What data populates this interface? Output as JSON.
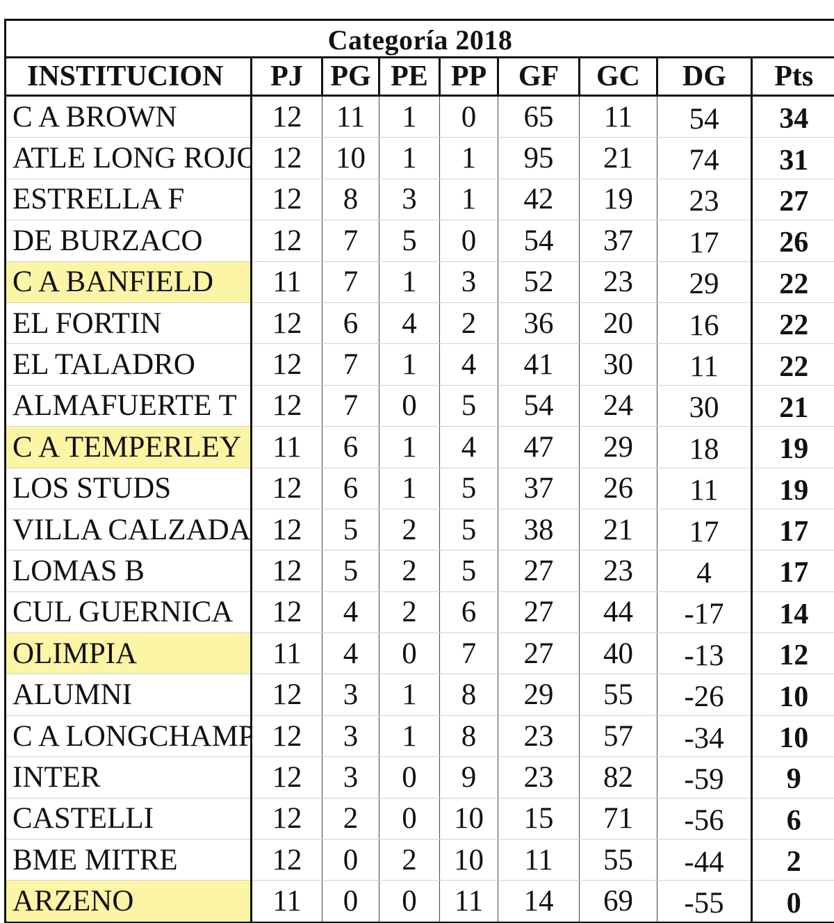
{
  "title": "Categoría  2018",
  "headers": [
    "INSTITUCION",
    "PJ",
    "PG",
    "PE",
    "PP",
    "GF",
    "GC",
    "DG",
    "Pts"
  ],
  "highlight_color": "#fdf5a6",
  "rows": [
    {
      "team": "C A BROWN",
      "pj": "12",
      "pg": "11",
      "pe": "1",
      "pp": "0",
      "gf": "65",
      "gc": "11",
      "dg": "54",
      "pts": "34",
      "highlighted": false
    },
    {
      "team": "ATLE LONG ROJO",
      "pj": "12",
      "pg": "10",
      "pe": "1",
      "pp": "1",
      "gf": "95",
      "gc": "21",
      "dg": "74",
      "pts": "31",
      "highlighted": false
    },
    {
      "team": "ESTRELLA F",
      "pj": "12",
      "pg": "8",
      "pe": "3",
      "pp": "1",
      "gf": "42",
      "gc": "19",
      "dg": "23",
      "pts": "27",
      "highlighted": false
    },
    {
      "team": "DE BURZACO",
      "pj": "12",
      "pg": "7",
      "pe": "5",
      "pp": "0",
      "gf": "54",
      "gc": "37",
      "dg": "17",
      "pts": "26",
      "highlighted": false
    },
    {
      "team": "C A BANFIELD",
      "pj": "11",
      "pg": "7",
      "pe": "1",
      "pp": "3",
      "gf": "52",
      "gc": "23",
      "dg": "29",
      "pts": "22",
      "highlighted": true
    },
    {
      "team": "EL FORTIN",
      "pj": "12",
      "pg": "6",
      "pe": "4",
      "pp": "2",
      "gf": "36",
      "gc": "20",
      "dg": "16",
      "pts": "22",
      "highlighted": false
    },
    {
      "team": "EL TALADRO",
      "pj": "12",
      "pg": "7",
      "pe": "1",
      "pp": "4",
      "gf": "41",
      "gc": "30",
      "dg": "11",
      "pts": "22",
      "highlighted": false
    },
    {
      "team": "ALMAFUERTE T",
      "pj": "12",
      "pg": "7",
      "pe": "0",
      "pp": "5",
      "gf": "54",
      "gc": "24",
      "dg": "30",
      "pts": "21",
      "highlighted": false
    },
    {
      "team": "C A TEMPERLEY",
      "pj": "11",
      "pg": "6",
      "pe": "1",
      "pp": "4",
      "gf": "47",
      "gc": "29",
      "dg": "18",
      "pts": "19",
      "highlighted": true
    },
    {
      "team": "LOS STUDS",
      "pj": "12",
      "pg": "6",
      "pe": "1",
      "pp": "5",
      "gf": "37",
      "gc": "26",
      "dg": "11",
      "pts": "19",
      "highlighted": false
    },
    {
      "team": "VILLA CALZADA",
      "pj": "12",
      "pg": "5",
      "pe": "2",
      "pp": "5",
      "gf": "38",
      "gc": "21",
      "dg": "17",
      "pts": "17",
      "highlighted": false
    },
    {
      "team": "LOMAS B",
      "pj": "12",
      "pg": "5",
      "pe": "2",
      "pp": "5",
      "gf": "27",
      "gc": "23",
      "dg": "4",
      "pts": "17",
      "highlighted": false
    },
    {
      "team": "CUL GUERNICA",
      "pj": "12",
      "pg": "4",
      "pe": "2",
      "pp": "6",
      "gf": "27",
      "gc": "44",
      "dg": "-17",
      "pts": "14",
      "highlighted": false
    },
    {
      "team": "OLIMPIA",
      "pj": "11",
      "pg": "4",
      "pe": "0",
      "pp": "7",
      "gf": "27",
      "gc": "40",
      "dg": "-13",
      "pts": "12",
      "highlighted": true
    },
    {
      "team": "ALUMNI",
      "pj": "12",
      "pg": "3",
      "pe": "1",
      "pp": "8",
      "gf": "29",
      "gc": "55",
      "dg": "-26",
      "pts": "10",
      "highlighted": false
    },
    {
      "team": "C A LONGCHAMPS",
      "pj": "12",
      "pg": "3",
      "pe": "1",
      "pp": "8",
      "gf": "23",
      "gc": "57",
      "dg": "-34",
      "pts": "10",
      "highlighted": false
    },
    {
      "team": "INTER",
      "pj": "12",
      "pg": "3",
      "pe": "0",
      "pp": "9",
      "gf": "23",
      "gc": "82",
      "dg": "-59",
      "pts": "9",
      "highlighted": false
    },
    {
      "team": "CASTELLI",
      "pj": "12",
      "pg": "2",
      "pe": "0",
      "pp": "10",
      "gf": "15",
      "gc": "71",
      "dg": "-56",
      "pts": "6",
      "highlighted": false
    },
    {
      "team": "BME MITRE",
      "pj": "12",
      "pg": "0",
      "pe": "2",
      "pp": "10",
      "gf": "11",
      "gc": "55",
      "dg": "-44",
      "pts": "2",
      "highlighted": false
    },
    {
      "team": "ARZENO",
      "pj": "11",
      "pg": "0",
      "pe": "0",
      "pp": "11",
      "gf": "14",
      "gc": "69",
      "dg": "-55",
      "pts": "0",
      "highlighted": true
    }
  ]
}
